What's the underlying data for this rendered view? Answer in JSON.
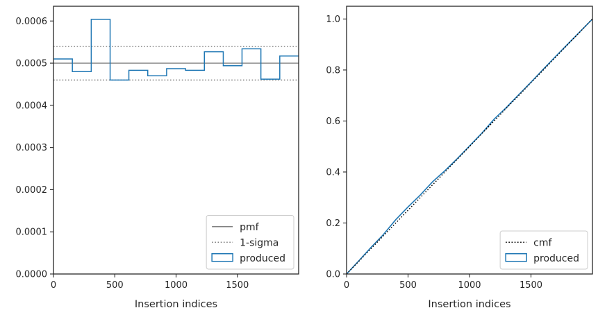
{
  "chart_data": [
    {
      "type": "step",
      "xlabel": "Insertion indices",
      "ylabel": "",
      "xlim": [
        0,
        2000
      ],
      "ylim": [
        0,
        0.000635
      ],
      "x_ticks": [
        0,
        500,
        1000,
        1500
      ],
      "x_tick_labels": [
        "0",
        "500",
        "1000",
        "1500"
      ],
      "y_ticks": [
        0,
        0.0001,
        0.0002,
        0.0003,
        0.0004,
        0.0005,
        0.0006
      ],
      "y_tick_labels": [
        "0.0000",
        "0.0001",
        "0.0002",
        "0.0003",
        "0.0004",
        "0.0005",
        "0.0006"
      ],
      "bin_edges": [
        0,
        154,
        308,
        462,
        615,
        769,
        923,
        1077,
        1231,
        1385,
        1538,
        1692,
        1846,
        2000
      ],
      "series": [
        {
          "name": "pmf",
          "style": "solid",
          "color": "#808080",
          "value": 0.0005
        },
        {
          "name": "1-sigma",
          "style": "dotted",
          "color": "#808080",
          "values": [
            0.00046,
            0.00054
          ]
        },
        {
          "name": "produced",
          "style": "step",
          "color": "#1f77b4",
          "values": [
            0.00051,
            0.00048,
            0.000604,
            0.00046,
            0.000483,
            0.00047,
            0.000487,
            0.000483,
            0.000527,
            0.000494,
            0.000534,
            0.000462,
            0.000517
          ]
        }
      ],
      "legend": {
        "position": "lower-right",
        "entries": [
          "pmf",
          "1-sigma",
          "produced"
        ]
      },
      "grid": false
    },
    {
      "type": "line",
      "xlabel": "Insertion indices",
      "ylabel": "",
      "xlim": [
        0,
        2000
      ],
      "ylim": [
        0,
        1.05
      ],
      "x_ticks": [
        0,
        500,
        1000,
        1500
      ],
      "x_tick_labels": [
        "0",
        "500",
        "1000",
        "1500"
      ],
      "y_ticks": [
        0,
        0.2,
        0.4,
        0.6,
        0.8,
        1.0
      ],
      "y_tick_labels": [
        "0.0",
        "0.2",
        "0.4",
        "0.6",
        "0.8",
        "1.0"
      ],
      "series": [
        {
          "name": "cmf",
          "style": "dotted",
          "color": "#000000",
          "x": [
            0,
            2000
          ],
          "y": [
            0,
            1
          ]
        },
        {
          "name": "produced",
          "style": "solid",
          "color": "#1f77b4",
          "x": [
            0,
            100,
            200,
            300,
            400,
            500,
            600,
            700,
            800,
            900,
            1000,
            1100,
            1200,
            1300,
            1400,
            1500,
            1600,
            1700,
            1800,
            1900,
            2000
          ],
          "y": [
            0,
            0.052,
            0.105,
            0.155,
            0.213,
            0.263,
            0.31,
            0.362,
            0.405,
            0.452,
            0.502,
            0.552,
            0.607,
            0.653,
            0.703,
            0.752,
            0.803,
            0.853,
            0.902,
            0.951,
            1.0
          ]
        }
      ],
      "legend": {
        "position": "lower-right",
        "entries": [
          "cmf",
          "produced"
        ]
      },
      "grid": false
    }
  ]
}
